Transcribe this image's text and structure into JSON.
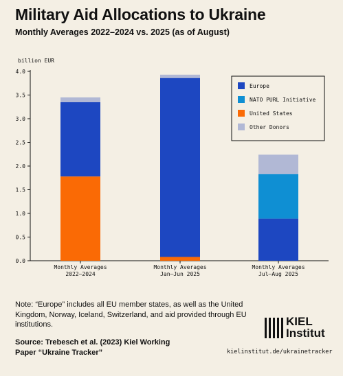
{
  "title": "Military Aid Allocations to Ukraine",
  "subtitle": "Monthly Averages 2022–2024 vs. 2025 (as of August)",
  "note": "Note: “Europe” includes all EU member states, as well as the United Kingdom, Norway, Iceland, Switzerland, and aid provided through EU institutions.",
  "source": "Source: Trebesch et al. (2023) Kiel Working Paper “Ukraine Tracker”",
  "logo": {
    "line1": "KIEL",
    "line2": "Institut"
  },
  "url": "kielinstitut.de/ukrainetracker",
  "colors": {
    "Europe": "#1d47c1",
    "NATO PURL Initiative": "#0f8fd3",
    "United States": "#fa6a05",
    "Other Donors": "#b1b8d5"
  },
  "chart_data": {
    "type": "bar",
    "stacked": true,
    "ylabel": "billion EUR",
    "ylim": [
      0,
      4.0
    ],
    "yticks": [
      "0.0",
      "0.5",
      "1.0",
      "1.5",
      "2.0",
      "2.5",
      "3.0",
      "3.5",
      "4.0"
    ],
    "grid": false,
    "legend_position": "top-right",
    "categories": [
      [
        "Monthly Averages",
        "2022–2024"
      ],
      [
        "Monthly Averages",
        "Jan–Jun 2025"
      ],
      [
        "Monthly Averages",
        "Jul–Aug 2025"
      ]
    ],
    "series": [
      {
        "name": "United States",
        "values": [
          1.78,
          0.08,
          0
        ]
      },
      {
        "name": "Europe",
        "values": [
          1.57,
          3.78,
          0.89
        ]
      },
      {
        "name": "NATO PURL Initiative",
        "values": [
          0,
          0,
          0.94
        ]
      },
      {
        "name": "Other Donors",
        "values": [
          0.1,
          0.07,
          0.41
        ]
      }
    ],
    "legend_order": [
      "Europe",
      "NATO PURL Initiative",
      "United States",
      "Other Donors"
    ]
  }
}
